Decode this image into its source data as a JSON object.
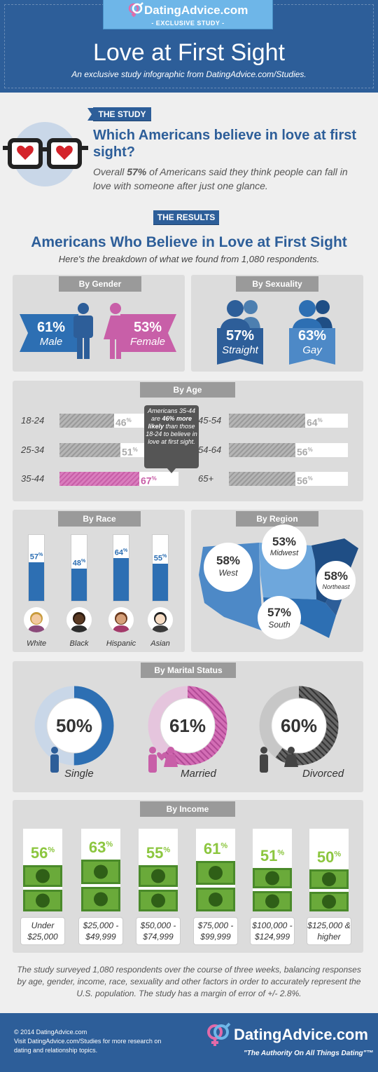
{
  "header": {
    "brand": "DatingAdvice.com",
    "tag": "- EXCLUSIVE STUDY -",
    "title": "Love at First Sight",
    "subtitle": "An exclusive study infographic from DatingAdvice.com/Studies."
  },
  "study": {
    "banner": "THE STUDY",
    "question": "Which Americans believe in love at first sight?",
    "text_pre": "Overall ",
    "text_bold": "57%",
    "text_post": " of Americans said they think people can fall in love with someone after just one glance."
  },
  "results": {
    "banner": "THE RESULTS",
    "title": "Americans Who Believe in Love at First Sight",
    "subtitle": "Here's the breakdown of what we found from 1,080 respondents."
  },
  "colors": {
    "blue": "#2d5e99",
    "light_blue": "#6eb6e8",
    "pink": "#c85fa8",
    "green": "#8cc63f",
    "gray": "#9a9a9a"
  },
  "chart_data": [
    {
      "type": "bar",
      "title": "By Gender",
      "categories": [
        "Male",
        "Female"
      ],
      "values": [
        61,
        53
      ],
      "labels": [
        "61%",
        "53%"
      ]
    },
    {
      "type": "bar",
      "title": "By Sexuality",
      "categories": [
        "Straight",
        "Gay"
      ],
      "values": [
        57,
        63
      ],
      "labels": [
        "57%",
        "63%"
      ]
    },
    {
      "type": "bar",
      "title": "By Age",
      "categories": [
        "18-24",
        "25-34",
        "35-44",
        "45-54",
        "54-64",
        "65+"
      ],
      "values": [
        46,
        51,
        67,
        64,
        56,
        56
      ],
      "ylim": [
        0,
        100
      ],
      "annotation": {
        "pre": "Americans 35-44 are ",
        "bold": "46% more likely",
        "post": " than those 18-24 to believe in love at first sight."
      }
    },
    {
      "type": "bar",
      "title": "By Race",
      "categories": [
        "White",
        "Black",
        "Hispanic",
        "Asian"
      ],
      "values": [
        57,
        48,
        64,
        55
      ],
      "ylim": [
        0,
        100
      ]
    },
    {
      "type": "table",
      "title": "By Region",
      "categories": [
        "West",
        "Midwest",
        "Northeast",
        "South"
      ],
      "values": [
        58,
        53,
        58,
        57
      ],
      "labels": [
        "58%",
        "53%",
        "58%",
        "57%"
      ]
    },
    {
      "type": "pie",
      "title": "By Marital Status",
      "categories": [
        "Single",
        "Married",
        "Divorced"
      ],
      "values": [
        50,
        61,
        60
      ],
      "labels": [
        "50%",
        "61%",
        "60%"
      ]
    },
    {
      "type": "bar",
      "title": "By Income",
      "categories": [
        "Under $25,000",
        "$25,000 - $49,999",
        "$50,000 - $74,999",
        "$75,000 - $99,999",
        "$100,000 - $124,999",
        "$125,000 & higher"
      ],
      "values": [
        56,
        63,
        55,
        61,
        51,
        50
      ],
      "ylim": [
        0,
        100
      ]
    }
  ],
  "footnote": "The study surveyed 1,080 respondents over the course of three weeks, balancing responses by age, gender, income, race, sexuality and other factors in order to accurately represent the U.S. population. The study has a margin of error of +/- 2.8%.",
  "footer": {
    "copyright": "© 2014 DatingAdvice.com",
    "visit": "Visit DatingAdvice.com/Studies for more research on dating and relationship topics.",
    "brand": "DatingAdvice.com",
    "tagline": "\"The Authority On All Things Dating\"™"
  }
}
